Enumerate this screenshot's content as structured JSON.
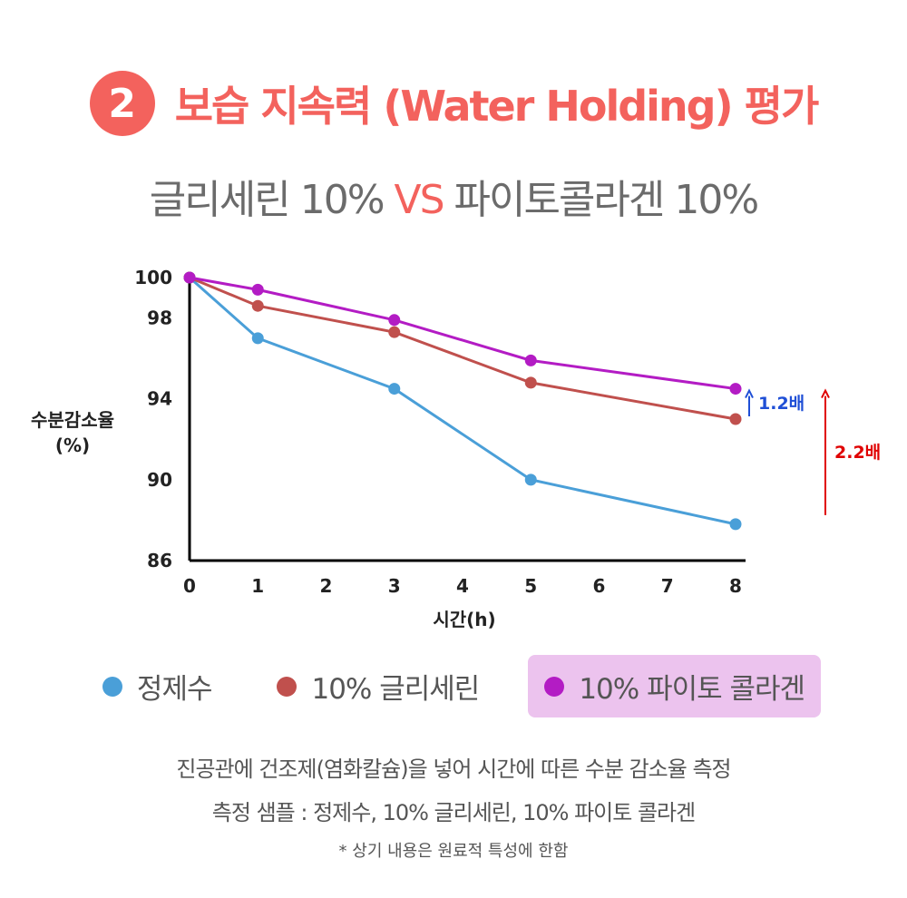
{
  "header": {
    "badge_number": "2",
    "title": "보습 지속력 (Water Holding) 평가",
    "subtitle_left": "글리세린 10% ",
    "subtitle_vs": "VS",
    "subtitle_right": " 파이토콜라겐 10%"
  },
  "chart_data": {
    "type": "line",
    "ylabel": "수분감소율\n(%)",
    "xlabel": "시간(h)",
    "x_ticks": [
      0,
      1,
      2,
      3,
      4,
      5,
      6,
      7,
      8
    ],
    "y_ticks": [
      100,
      98,
      94,
      90,
      86
    ],
    "xlim": [
      0,
      8
    ],
    "ylim": [
      86,
      100
    ],
    "series": [
      {
        "name": "정제수",
        "color": "#4a9fd8",
        "x": [
          0,
          1,
          3,
          5,
          8
        ],
        "values": [
          100,
          97.0,
          94.5,
          90.0,
          87.8
        ]
      },
      {
        "name": "10% 글리세린",
        "color": "#c0504d",
        "x": [
          0,
          1,
          3,
          5,
          8
        ],
        "values": [
          100,
          98.6,
          97.3,
          94.8,
          93.0
        ]
      },
      {
        "name": "10% 파이토 콜라겐",
        "color": "#b31cc4",
        "x": [
          0,
          1,
          3,
          5,
          8
        ],
        "values": [
          100,
          99.4,
          97.9,
          95.9,
          94.5
        ]
      }
    ],
    "annotations": [
      {
        "text": "1.2배",
        "color": "#1f4fd6",
        "from": 93.0,
        "to": 94.5,
        "at_x": 8
      },
      {
        "text": "2.2배",
        "color": "#e00000",
        "from": 87.8,
        "to": 94.5,
        "at_x": 8
      }
    ]
  },
  "legend": [
    {
      "label": "정제수",
      "color": "#4a9fd8",
      "highlight": false
    },
    {
      "label": "10% 글리세린",
      "color": "#c0504d",
      "highlight": false
    },
    {
      "label": "10% 파이토 콜라겐",
      "color": "#b31cc4",
      "highlight": true
    }
  ],
  "footer": {
    "line1": "진공관에 건조제(염화칼슘)을 넣어 시간에 따른 수분 감소율 측정",
    "line2": "측정 샘플 : 정제수, 10% 글리세린, 10% 파이토 콜라겐",
    "note": "* 상기 내용은 원료적 특성에 한함"
  }
}
